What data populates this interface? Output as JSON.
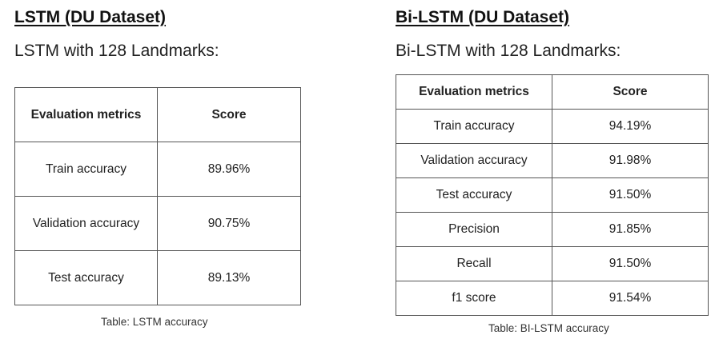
{
  "left": {
    "heading": "LSTM (DU Dataset)",
    "subheading": "LSTM with 128 Landmarks:",
    "table": {
      "headers": [
        "Evaluation metrics",
        "Score"
      ],
      "rows": [
        [
          "Train accuracy",
          "89.96%"
        ],
        [
          "Validation accuracy",
          "90.75%"
        ],
        [
          "Test accuracy",
          "89.13%"
        ]
      ]
    },
    "caption": "Table: LSTM accuracy"
  },
  "right": {
    "heading": "Bi-LSTM (DU Dataset)",
    "subheading": "Bi-LSTM with 128 Landmarks:",
    "table": {
      "headers": [
        "Evaluation metrics",
        "Score"
      ],
      "rows": [
        [
          "Train accuracy",
          "94.19%"
        ],
        [
          "Validation accuracy",
          "91.98%"
        ],
        [
          "Test accuracy",
          "91.50%"
        ],
        [
          "Precision",
          "91.85%"
        ],
        [
          "Recall",
          "91.50%"
        ],
        [
          "f1 score",
          "91.54%"
        ]
      ]
    },
    "caption": "Table: BI-LSTM accuracy"
  }
}
